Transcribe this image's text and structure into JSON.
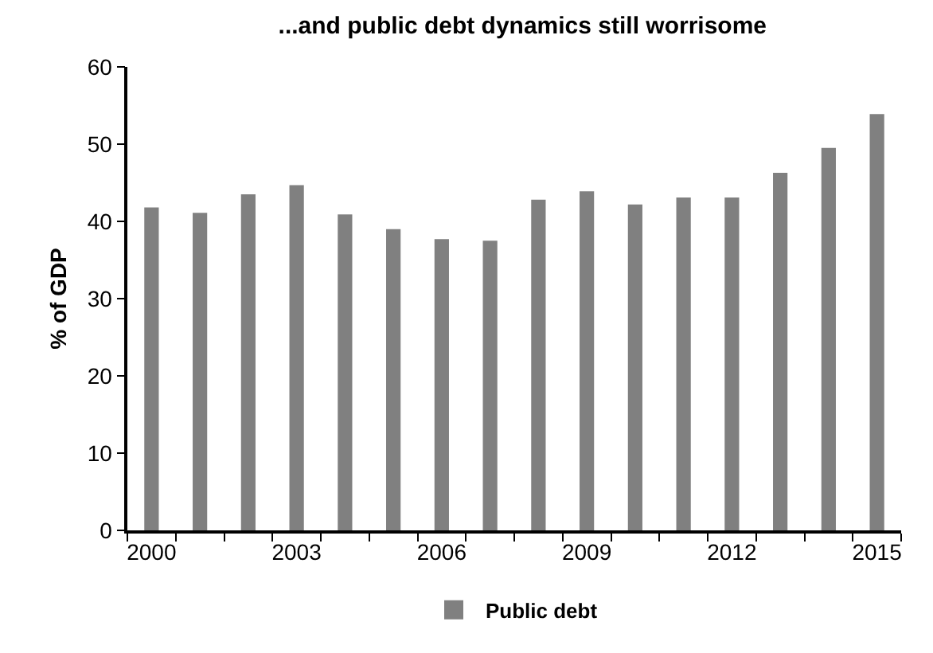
{
  "chart_data": {
    "type": "bar",
    "title": "...and public debt dynamics still worrisome",
    "ylabel": "% of GDP",
    "categories": [
      "2000",
      null,
      null,
      "2003",
      null,
      null,
      "2006",
      null,
      null,
      "2009",
      null,
      null,
      "2012",
      null,
      null,
      "2015"
    ],
    "series": [
      {
        "name": "Public debt",
        "color": "#808080",
        "values": [
          41.8,
          41.1,
          43.5,
          44.7,
          40.9,
          39.0,
          37.7,
          37.5,
          42.8,
          43.9,
          42.2,
          43.1,
          43.1,
          46.3,
          49.5,
          53.9
        ]
      }
    ],
    "ylim": [
      0,
      60
    ],
    "yticks": [
      0,
      10,
      20,
      30,
      40,
      50,
      60
    ],
    "grid": false,
    "legend": "bottom"
  }
}
